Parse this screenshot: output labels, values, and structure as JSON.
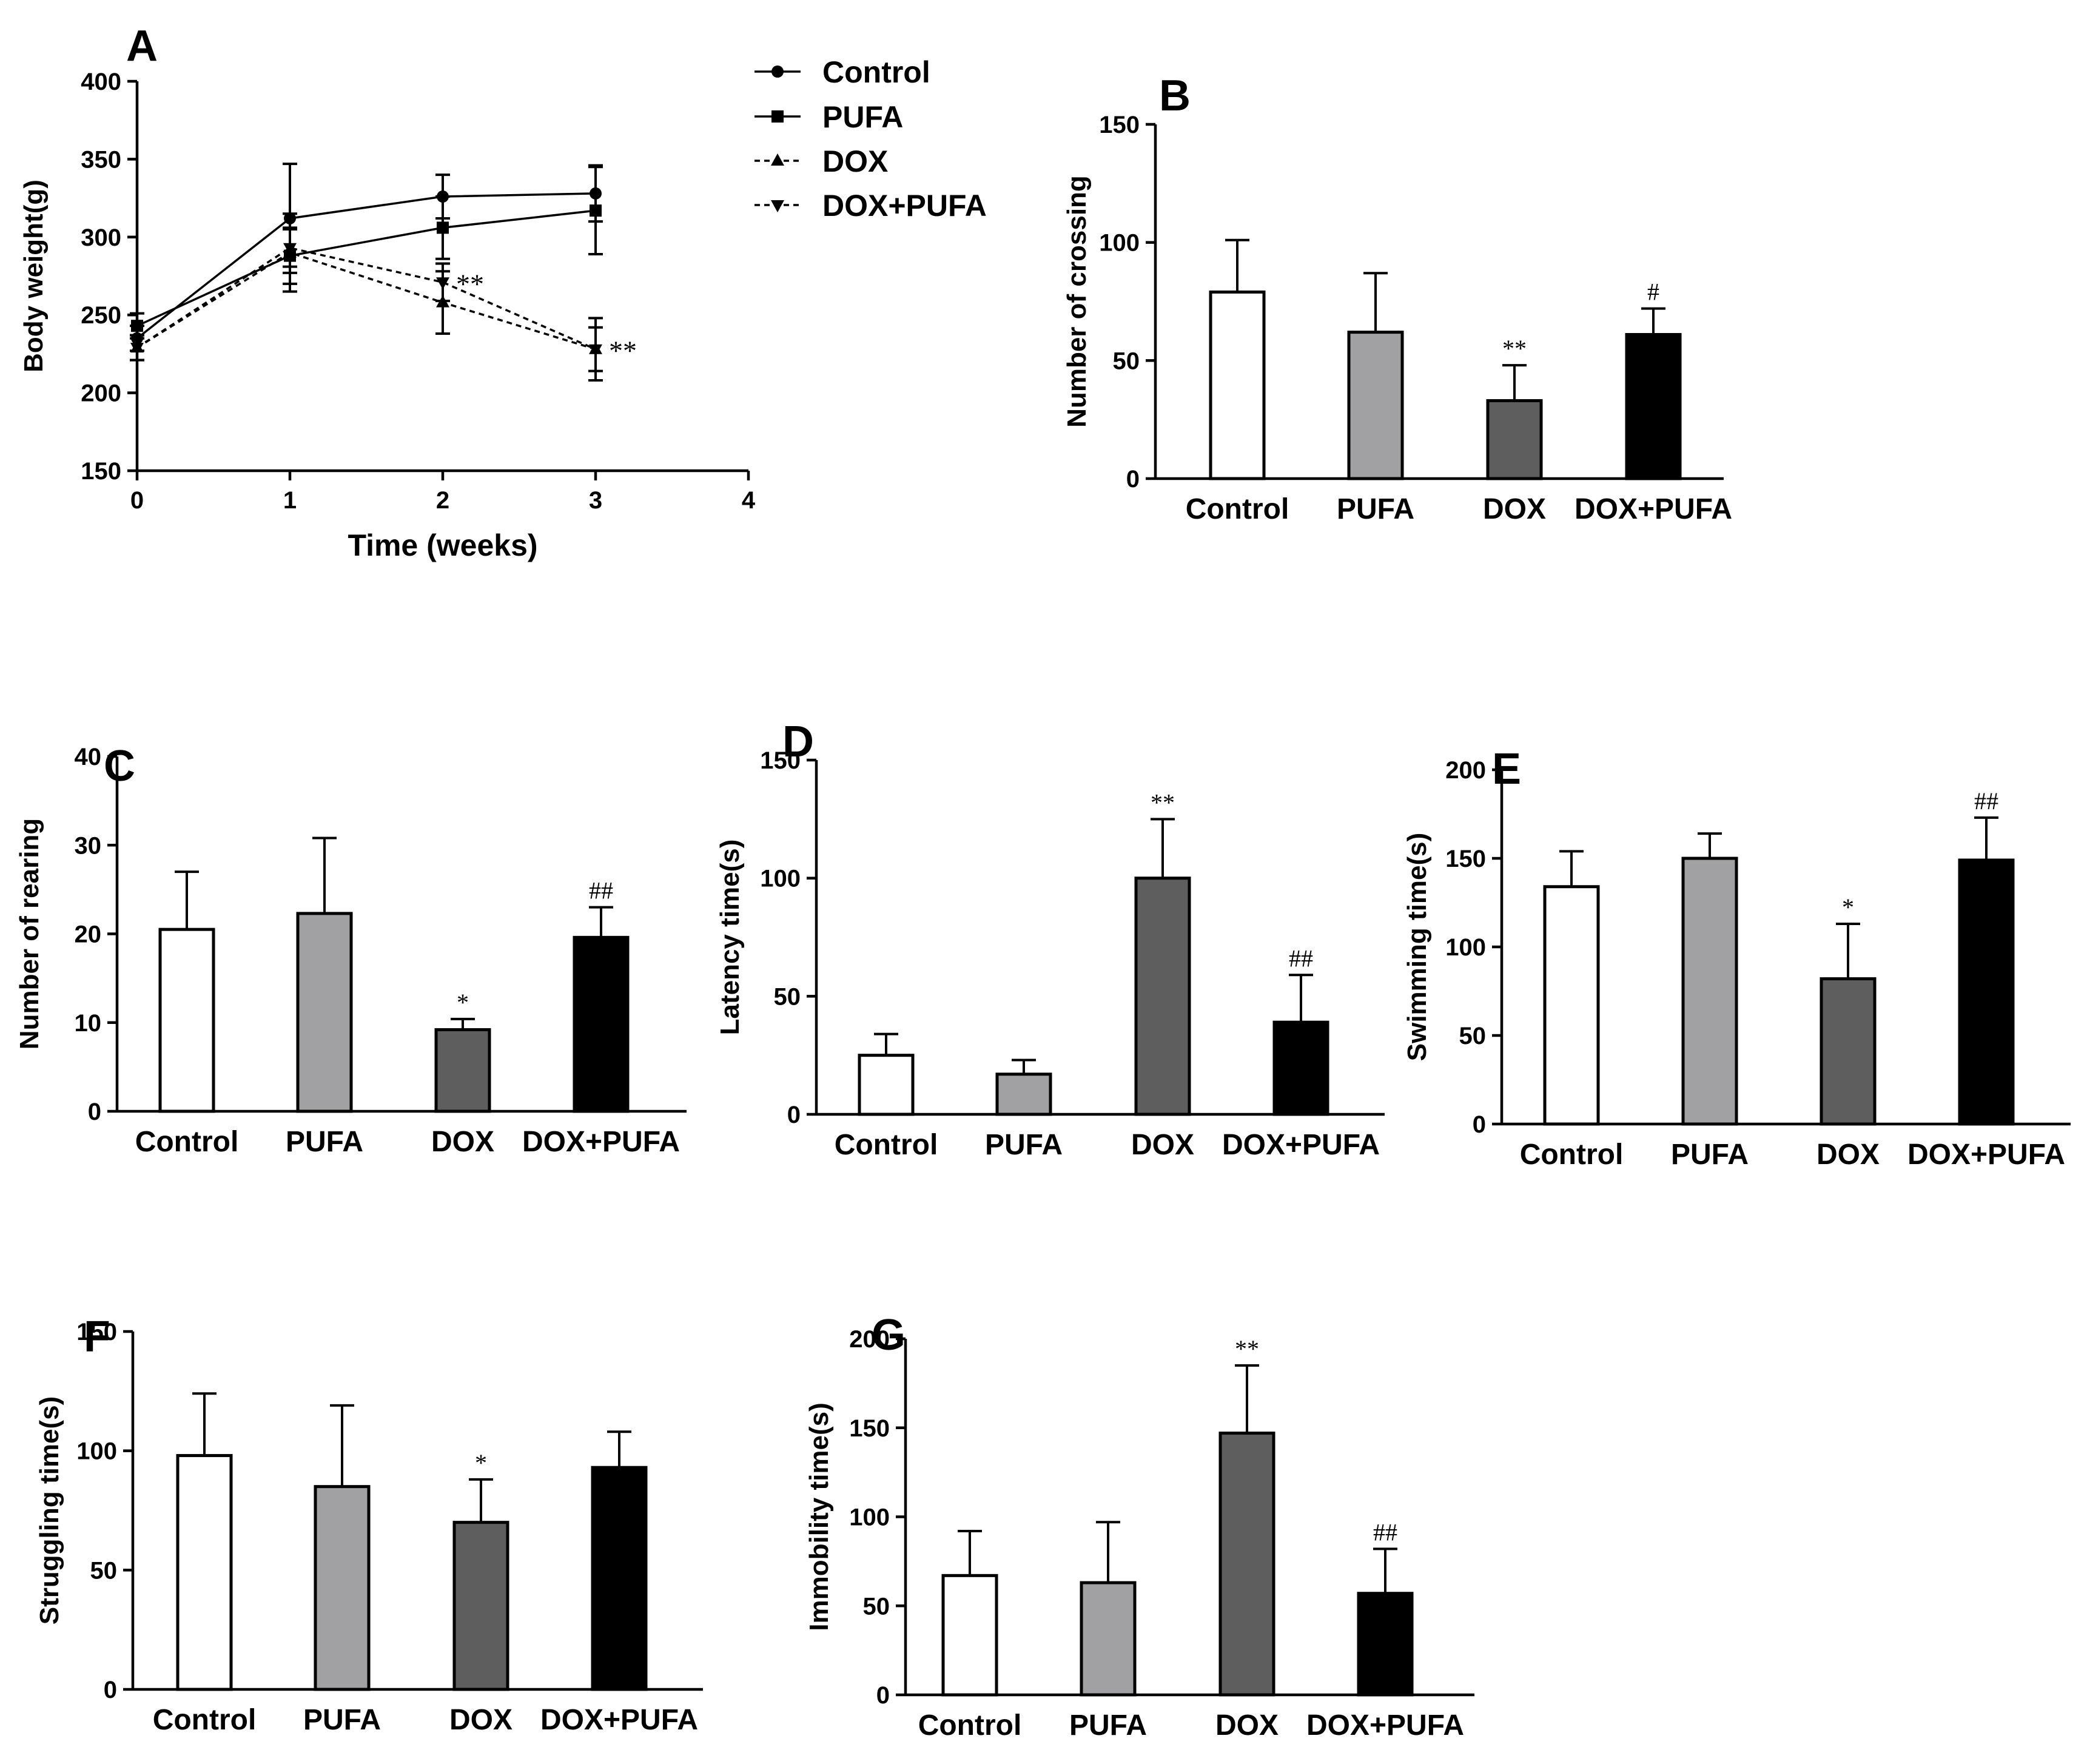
{
  "colors": {
    "control": "#ffffff",
    "pufa": "#a1a1a4",
    "dox": "#5e5e5e",
    "doxpufa": "#000000",
    "ink": "#000000"
  },
  "chart_data": [
    {
      "panel": "A",
      "type": "line",
      "title": "",
      "xlabel": "Time (weeks)",
      "ylabel": "Body weight(g)",
      "xlim": [
        0,
        4
      ],
      "ylim": [
        150,
        400
      ],
      "xticks": [
        0,
        1,
        2,
        3,
        4
      ],
      "yticks": [
        150,
        200,
        250,
        300,
        350,
        400
      ],
      "x": [
        0,
        1,
        2,
        3
      ],
      "series": [
        {
          "name": "Control",
          "marker": "circle",
          "dash": "solid",
          "values": [
            235,
            312,
            326,
            328
          ],
          "errors": [
            8,
            35,
            14,
            18
          ]
        },
        {
          "name": "PUFA",
          "marker": "square",
          "dash": "solid",
          "values": [
            243,
            288,
            306,
            317
          ],
          "errors": [
            8,
            18,
            20,
            28
          ]
        },
        {
          "name": "DOX",
          "marker": "triangle-up",
          "dash": "dashed",
          "values": [
            229,
            290,
            258,
            228
          ],
          "errors": [
            8,
            25,
            20,
            20
          ]
        },
        {
          "name": "DOX+PUFA",
          "marker": "triangle-down",
          "dash": "dashed",
          "values": [
            229,
            293,
            271,
            228
          ],
          "errors": [
            8,
            12,
            12,
            14
          ]
        }
      ],
      "annotations": [
        {
          "x": 2,
          "y": 271,
          "text": "**"
        },
        {
          "x": 3,
          "y": 228,
          "text": "**"
        }
      ]
    },
    {
      "panel": "B",
      "type": "bar",
      "ylabel": "Number of  crossing",
      "categories": [
        "Control",
        "PUFA",
        "DOX",
        "DOX+PUFA"
      ],
      "values": [
        79,
        62,
        33,
        61
      ],
      "errors": [
        22,
        25,
        15,
        11
      ],
      "ylim": [
        0,
        150
      ],
      "yticks": [
        0,
        50,
        100,
        150
      ],
      "annotations": [
        "",
        "",
        "**",
        "#"
      ]
    },
    {
      "panel": "C",
      "type": "bar",
      "ylabel": "Number of rearing",
      "categories": [
        "Control",
        "PUFA",
        "DOX",
        "DOX+PUFA"
      ],
      "values": [
        20.5,
        22.3,
        9.2,
        19.6
      ],
      "errors": [
        6.5,
        8.5,
        1.2,
        3.4
      ],
      "ylim": [
        0,
        40
      ],
      "yticks": [
        0,
        10,
        20,
        30,
        40
      ],
      "annotations": [
        "",
        "",
        "*",
        "##"
      ]
    },
    {
      "panel": "D",
      "type": "bar",
      "ylabel": "Latency time(s)",
      "categories": [
        "Control",
        "PUFA",
        "DOX",
        "DOX+PUFA"
      ],
      "values": [
        25,
        17,
        100,
        39
      ],
      "errors": [
        9,
        6,
        25,
        20
      ],
      "ylim": [
        0,
        150
      ],
      "yticks": [
        0,
        50,
        100,
        150
      ],
      "annotations": [
        "",
        "",
        "**",
        "##"
      ]
    },
    {
      "panel": "E",
      "type": "bar",
      "ylabel": "Swimming time(s)",
      "categories": [
        "Control",
        "PUFA",
        "DOX",
        "DOX+PUFA"
      ],
      "values": [
        134,
        150,
        82,
        149
      ],
      "errors": [
        20,
        14,
        31,
        24
      ],
      "ylim": [
        0,
        200
      ],
      "yticks": [
        0,
        50,
        100,
        150,
        200
      ],
      "annotations": [
        "",
        "",
        "*",
        "##"
      ]
    },
    {
      "panel": "F",
      "type": "bar",
      "ylabel": "Struggling time(s)",
      "categories": [
        "Control",
        "PUFA",
        "DOX",
        "DOX+PUFA"
      ],
      "values": [
        98,
        85,
        70,
        93
      ],
      "errors": [
        26,
        34,
        18,
        15
      ],
      "ylim": [
        0,
        150
      ],
      "yticks": [
        0,
        50,
        100,
        150
      ],
      "annotations": [
        "",
        "",
        "*",
        ""
      ]
    },
    {
      "panel": "G",
      "type": "bar",
      "ylabel": "Immobility time(s)",
      "categories": [
        "Control",
        "PUFA",
        "DOX",
        "DOX+PUFA"
      ],
      "values": [
        67,
        63,
        147,
        57
      ],
      "errors": [
        25,
        34,
        38,
        25
      ],
      "ylim": [
        0,
        200
      ],
      "yticks": [
        0,
        50,
        100,
        150,
        200
      ],
      "annotations": [
        "",
        "",
        "**",
        "##"
      ]
    }
  ]
}
